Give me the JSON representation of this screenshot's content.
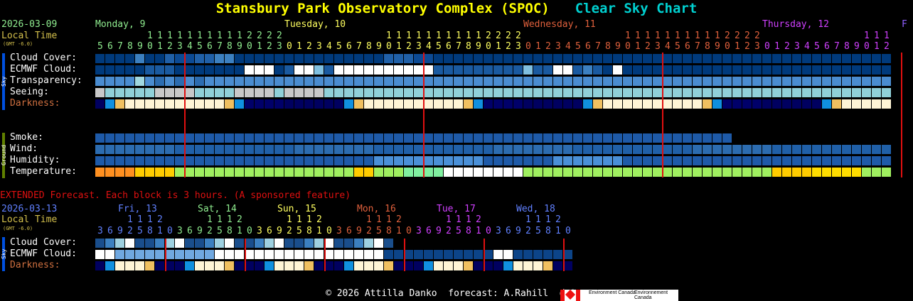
{
  "title": "Stansbury Park Observatory Complex (SPOC)",
  "subtitle": "Clear Sky Chart",
  "main": {
    "date": "2026-03-09",
    "local_time": "Local Time",
    "gmt": "(GMT -6.0)",
    "days": [
      {
        "label": "Monday, 9",
        "color": "#90ee90"
      },
      {
        "label": "Tuesday, 10",
        "color": "#ffff60"
      },
      {
        "label": "Wednesday, 11",
        "color": "#e0603c"
      },
      {
        "label": "Thursday, 12",
        "color": "#d040ff"
      },
      {
        "label": "F",
        "color": "#9060ff"
      }
    ],
    "hours_top": "1111112222",
    "hours_bottom": "5678901230",
    "full_hours_top": "11111111112222",
    "full_hours_bottom": "012345678901234567890123",
    "sky_labels": [
      "Cloud Cover:",
      "ECMWF Cloud:",
      "Transparency:",
      "Seeing:",
      "Darkness:"
    ],
    "ground_labels": [
      "Smoke:",
      "Wind:",
      "Humidity:",
      "Temperature:"
    ],
    "sky_tag": "Sky",
    "ground_tag": "Ground",
    "rows": {
      "cloud": "0000300211223300000000000000022211000000000000000000000000000000000000000000000000000000000000000000000000000000000",
      "ecmwf": "0000011100000004440144314444444444111111111311441210400000000000000000000000000000000000000000000000000000000000000000",
      "transp": "2222123232322222222222222222222222222222222222222222222222222222222222222222222222222222222222222222222222222222222222",
      "seeing": "3444443333444433334333344444444444444444444444444444444444444444444444444444444444444444444444444444444444444444444444",
      "dark": "",
      "smoke": "",
      "wind": "",
      "humidity": "",
      "temp": ""
    }
  },
  "extended": {
    "banner": "EXTENDED Forecast. Each block is 3 hours. (A sponsored feature)",
    "date": "2026-03-13",
    "local_time": "Local Time",
    "gmt": "(GMT -6.0)",
    "days": [
      {
        "label": "Fri, 13",
        "color": "#6080ff"
      },
      {
        "label": "Sat, 14",
        "color": "#90ee90"
      },
      {
        "label": "Sun, 15",
        "color": "#ffff60"
      },
      {
        "label": "Mon, 16",
        "color": "#e0603c"
      },
      {
        "label": "Tue, 17",
        "color": "#d040ff"
      },
      {
        "label": "Wed, 18",
        "color": "#6080ff"
      }
    ],
    "hours_top": "1112",
    "hours_bottom": "36925810",
    "sky_labels": [
      "Cloud Cover:",
      "ECMWF Cloud:",
      "Darkness:"
    ]
  },
  "footer": {
    "text": "© 2026 Attilla Danko  forecast: A.Rahill  data:",
    "org1": "Environment Canada",
    "org2": "Environnement Canada"
  },
  "colors": {
    "title": "#ffff00",
    "subtitle": "#00d0d0",
    "date": "#90ee90",
    "local": "#d4c04c",
    "darkness_label": "#d07040",
    "extended_banner": "#e01010",
    "midnight_line": "#e01010",
    "sky_bar": "#0050e0",
    "ground_bar": "#608000"
  }
}
